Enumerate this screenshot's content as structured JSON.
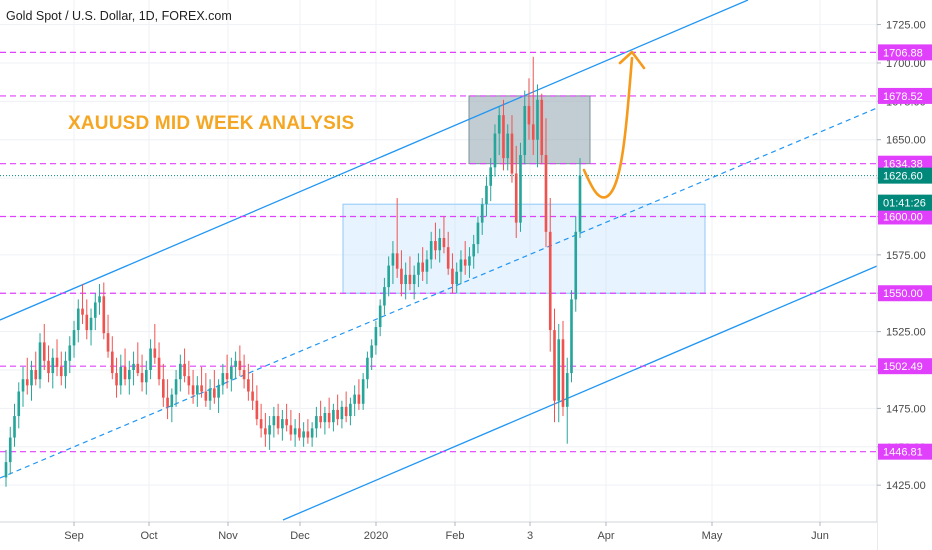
{
  "header": {
    "symbol": "Gold Spot / U.S. Dollar, 1D, FOREX.com"
  },
  "annotation": {
    "title": "XAUUSD MID WEEK ANALYSIS",
    "color": "#f5a623"
  },
  "chart_data": {
    "type": "candlestick",
    "ylim": [
      1401,
      1741
    ],
    "y_ticks": [
      1425,
      1450,
      1475,
      1500,
      1525,
      1550,
      1575,
      1600,
      1625,
      1650,
      1675,
      1700,
      1725
    ],
    "y_tick_labels": [
      "1425.00",
      "1450.00",
      "1475.00",
      "1500.00",
      "1525.00",
      "1550.00",
      "1575.00",
      "1600.00",
      "1625.00",
      "1650.00",
      "1675.00",
      "1700.00",
      "1725.00"
    ],
    "x_tick_labels": [
      "Sep",
      "Oct",
      "Nov",
      "Dec",
      "2020",
      "Feb",
      "3",
      "Apr",
      "May",
      "Jun"
    ],
    "grid": true,
    "colors": {
      "up": "#26a69a",
      "down": "#ef5350",
      "level": "#e040fb",
      "channel": "#2196f3",
      "price": "#00897b",
      "arrow": "#f59a1a"
    },
    "levels": [
      1706.88,
      1678.52,
      1634.38,
      1600.0,
      1550.0,
      1502.49,
      1446.81
    ],
    "level_labels": [
      "1706.88",
      "1678.52",
      "1634.38",
      "1600.00",
      "1550.00",
      "1502.49",
      "1446.81"
    ],
    "current_price": {
      "value": 1626.6,
      "label": "1626.60",
      "countdown": "01:41:26"
    },
    "zones": [
      {
        "name": "resistance-zone",
        "low": 1634.38,
        "high": 1678.52,
        "color": "#90a4ae"
      },
      {
        "name": "support-zone",
        "low": 1550.0,
        "high": 1608.0,
        "color": "#bbdefb"
      }
    ],
    "candles": [
      {
        "o": 1430,
        "h": 1448,
        "l": 1424,
        "c": 1440
      },
      {
        "o": 1440,
        "h": 1463,
        "l": 1432,
        "c": 1456
      },
      {
        "o": 1456,
        "h": 1478,
        "l": 1450,
        "c": 1470
      },
      {
        "o": 1470,
        "h": 1492,
        "l": 1462,
        "c": 1486
      },
      {
        "o": 1486,
        "h": 1502,
        "l": 1476,
        "c": 1494
      },
      {
        "o": 1494,
        "h": 1508,
        "l": 1484,
        "c": 1490
      },
      {
        "o": 1490,
        "h": 1506,
        "l": 1480,
        "c": 1500
      },
      {
        "o": 1500,
        "h": 1512,
        "l": 1490,
        "c": 1494
      },
      {
        "o": 1494,
        "h": 1524,
        "l": 1488,
        "c": 1518
      },
      {
        "o": 1518,
        "h": 1530,
        "l": 1500,
        "c": 1506
      },
      {
        "o": 1506,
        "h": 1516,
        "l": 1492,
        "c": 1498
      },
      {
        "o": 1498,
        "h": 1514,
        "l": 1488,
        "c": 1508
      },
      {
        "o": 1508,
        "h": 1520,
        "l": 1496,
        "c": 1502
      },
      {
        "o": 1502,
        "h": 1512,
        "l": 1490,
        "c": 1496
      },
      {
        "o": 1496,
        "h": 1512,
        "l": 1488,
        "c": 1506
      },
      {
        "o": 1506,
        "h": 1522,
        "l": 1498,
        "c": 1516
      },
      {
        "o": 1516,
        "h": 1532,
        "l": 1508,
        "c": 1526
      },
      {
        "o": 1526,
        "h": 1546,
        "l": 1518,
        "c": 1540
      },
      {
        "o": 1540,
        "h": 1556,
        "l": 1530,
        "c": 1536
      },
      {
        "o": 1536,
        "h": 1546,
        "l": 1520,
        "c": 1526
      },
      {
        "o": 1526,
        "h": 1540,
        "l": 1516,
        "c": 1534
      },
      {
        "o": 1534,
        "h": 1550,
        "l": 1526,
        "c": 1544
      },
      {
        "o": 1544,
        "h": 1556,
        "l": 1536,
        "c": 1548
      },
      {
        "o": 1548,
        "h": 1557,
        "l": 1520,
        "c": 1524
      },
      {
        "o": 1524,
        "h": 1536,
        "l": 1508,
        "c": 1512
      },
      {
        "o": 1512,
        "h": 1522,
        "l": 1494,
        "c": 1498
      },
      {
        "o": 1498,
        "h": 1508,
        "l": 1482,
        "c": 1490
      },
      {
        "o": 1490,
        "h": 1510,
        "l": 1484,
        "c": 1502
      },
      {
        "o": 1502,
        "h": 1514,
        "l": 1490,
        "c": 1494
      },
      {
        "o": 1494,
        "h": 1506,
        "l": 1484,
        "c": 1500
      },
      {
        "o": 1500,
        "h": 1512,
        "l": 1490,
        "c": 1504
      },
      {
        "o": 1504,
        "h": 1518,
        "l": 1496,
        "c": 1498
      },
      {
        "o": 1498,
        "h": 1510,
        "l": 1486,
        "c": 1492
      },
      {
        "o": 1492,
        "h": 1506,
        "l": 1484,
        "c": 1500
      },
      {
        "o": 1500,
        "h": 1520,
        "l": 1494,
        "c": 1514
      },
      {
        "o": 1514,
        "h": 1530,
        "l": 1504,
        "c": 1508
      },
      {
        "o": 1508,
        "h": 1518,
        "l": 1490,
        "c": 1494
      },
      {
        "o": 1494,
        "h": 1504,
        "l": 1476,
        "c": 1482
      },
      {
        "o": 1482,
        "h": 1494,
        "l": 1468,
        "c": 1476
      },
      {
        "o": 1476,
        "h": 1488,
        "l": 1466,
        "c": 1484
      },
      {
        "o": 1484,
        "h": 1500,
        "l": 1476,
        "c": 1494
      },
      {
        "o": 1494,
        "h": 1510,
        "l": 1486,
        "c": 1504
      },
      {
        "o": 1504,
        "h": 1514,
        "l": 1492,
        "c": 1496
      },
      {
        "o": 1496,
        "h": 1506,
        "l": 1484,
        "c": 1490
      },
      {
        "o": 1490,
        "h": 1500,
        "l": 1478,
        "c": 1484
      },
      {
        "o": 1484,
        "h": 1496,
        "l": 1476,
        "c": 1490
      },
      {
        "o": 1490,
        "h": 1502,
        "l": 1482,
        "c": 1486
      },
      {
        "o": 1486,
        "h": 1498,
        "l": 1476,
        "c": 1480
      },
      {
        "o": 1480,
        "h": 1494,
        "l": 1474,
        "c": 1488
      },
      {
        "o": 1488,
        "h": 1500,
        "l": 1478,
        "c": 1482
      },
      {
        "o": 1482,
        "h": 1494,
        "l": 1472,
        "c": 1490
      },
      {
        "o": 1490,
        "h": 1504,
        "l": 1484,
        "c": 1498
      },
      {
        "o": 1498,
        "h": 1510,
        "l": 1488,
        "c": 1494
      },
      {
        "o": 1494,
        "h": 1508,
        "l": 1486,
        "c": 1502
      },
      {
        "o": 1502,
        "h": 1512,
        "l": 1494,
        "c": 1506
      },
      {
        "o": 1506,
        "h": 1516,
        "l": 1496,
        "c": 1500
      },
      {
        "o": 1500,
        "h": 1510,
        "l": 1488,
        "c": 1494
      },
      {
        "o": 1494,
        "h": 1504,
        "l": 1480,
        "c": 1486
      },
      {
        "o": 1486,
        "h": 1498,
        "l": 1474,
        "c": 1480
      },
      {
        "o": 1480,
        "h": 1490,
        "l": 1464,
        "c": 1468
      },
      {
        "o": 1468,
        "h": 1478,
        "l": 1456,
        "c": 1462
      },
      {
        "o": 1462,
        "h": 1472,
        "l": 1450,
        "c": 1458
      },
      {
        "o": 1458,
        "h": 1470,
        "l": 1448,
        "c": 1464
      },
      {
        "o": 1464,
        "h": 1476,
        "l": 1456,
        "c": 1470
      },
      {
        "o": 1470,
        "h": 1478,
        "l": 1458,
        "c": 1462
      },
      {
        "o": 1462,
        "h": 1474,
        "l": 1454,
        "c": 1468
      },
      {
        "o": 1468,
        "h": 1478,
        "l": 1460,
        "c": 1464
      },
      {
        "o": 1464,
        "h": 1474,
        "l": 1454,
        "c": 1458
      },
      {
        "o": 1458,
        "h": 1468,
        "l": 1450,
        "c": 1462
      },
      {
        "o": 1462,
        "h": 1472,
        "l": 1454,
        "c": 1456
      },
      {
        "o": 1456,
        "h": 1466,
        "l": 1450,
        "c": 1460
      },
      {
        "o": 1460,
        "h": 1468,
        "l": 1452,
        "c": 1456
      },
      {
        "o": 1456,
        "h": 1466,
        "l": 1450,
        "c": 1462
      },
      {
        "o": 1462,
        "h": 1476,
        "l": 1456,
        "c": 1470
      },
      {
        "o": 1470,
        "h": 1480,
        "l": 1462,
        "c": 1466
      },
      {
        "o": 1466,
        "h": 1476,
        "l": 1458,
        "c": 1472
      },
      {
        "o": 1472,
        "h": 1482,
        "l": 1462,
        "c": 1466
      },
      {
        "o": 1466,
        "h": 1478,
        "l": 1460,
        "c": 1474
      },
      {
        "o": 1474,
        "h": 1484,
        "l": 1464,
        "c": 1468
      },
      {
        "o": 1468,
        "h": 1480,
        "l": 1462,
        "c": 1476
      },
      {
        "o": 1476,
        "h": 1486,
        "l": 1466,
        "c": 1470
      },
      {
        "o": 1470,
        "h": 1482,
        "l": 1464,
        "c": 1478
      },
      {
        "o": 1478,
        "h": 1490,
        "l": 1470,
        "c": 1484
      },
      {
        "o": 1484,
        "h": 1494,
        "l": 1474,
        "c": 1478
      },
      {
        "o": 1478,
        "h": 1498,
        "l": 1474,
        "c": 1494
      },
      {
        "o": 1494,
        "h": 1512,
        "l": 1488,
        "c": 1508
      },
      {
        "o": 1508,
        "h": 1520,
        "l": 1500,
        "c": 1516
      },
      {
        "o": 1516,
        "h": 1532,
        "l": 1510,
        "c": 1528
      },
      {
        "o": 1528,
        "h": 1546,
        "l": 1522,
        "c": 1542
      },
      {
        "o": 1542,
        "h": 1560,
        "l": 1536,
        "c": 1554
      },
      {
        "o": 1554,
        "h": 1574,
        "l": 1548,
        "c": 1568
      },
      {
        "o": 1568,
        "h": 1584,
        "l": 1556,
        "c": 1576
      },
      {
        "o": 1576,
        "h": 1612,
        "l": 1560,
        "c": 1566
      },
      {
        "o": 1566,
        "h": 1578,
        "l": 1548,
        "c": 1556
      },
      {
        "o": 1556,
        "h": 1570,
        "l": 1546,
        "c": 1562
      },
      {
        "o": 1562,
        "h": 1574,
        "l": 1552,
        "c": 1556
      },
      {
        "o": 1556,
        "h": 1568,
        "l": 1546,
        "c": 1562
      },
      {
        "o": 1562,
        "h": 1576,
        "l": 1554,
        "c": 1570
      },
      {
        "o": 1570,
        "h": 1580,
        "l": 1558,
        "c": 1564
      },
      {
        "o": 1564,
        "h": 1578,
        "l": 1556,
        "c": 1572
      },
      {
        "o": 1572,
        "h": 1590,
        "l": 1566,
        "c": 1584
      },
      {
        "o": 1584,
        "h": 1596,
        "l": 1572,
        "c": 1578
      },
      {
        "o": 1578,
        "h": 1592,
        "l": 1570,
        "c": 1586
      },
      {
        "o": 1586,
        "h": 1600,
        "l": 1576,
        "c": 1580
      },
      {
        "o": 1580,
        "h": 1590,
        "l": 1562,
        "c": 1566
      },
      {
        "o": 1566,
        "h": 1576,
        "l": 1550,
        "c": 1556
      },
      {
        "o": 1556,
        "h": 1570,
        "l": 1550,
        "c": 1564
      },
      {
        "o": 1564,
        "h": 1578,
        "l": 1556,
        "c": 1572
      },
      {
        "o": 1572,
        "h": 1584,
        "l": 1562,
        "c": 1568
      },
      {
        "o": 1568,
        "h": 1580,
        "l": 1560,
        "c": 1574
      },
      {
        "o": 1574,
        "h": 1588,
        "l": 1566,
        "c": 1582
      },
      {
        "o": 1582,
        "h": 1600,
        "l": 1576,
        "c": 1596
      },
      {
        "o": 1596,
        "h": 1612,
        "l": 1588,
        "c": 1608
      },
      {
        "o": 1608,
        "h": 1626,
        "l": 1600,
        "c": 1620
      },
      {
        "o": 1620,
        "h": 1638,
        "l": 1610,
        "c": 1632
      },
      {
        "o": 1632,
        "h": 1660,
        "l": 1626,
        "c": 1654
      },
      {
        "o": 1654,
        "h": 1672,
        "l": 1640,
        "c": 1666
      },
      {
        "o": 1666,
        "h": 1676,
        "l": 1630,
        "c": 1638
      },
      {
        "o": 1638,
        "h": 1660,
        "l": 1630,
        "c": 1654
      },
      {
        "o": 1654,
        "h": 1666,
        "l": 1622,
        "c": 1628
      },
      {
        "o": 1628,
        "h": 1646,
        "l": 1586,
        "c": 1596
      },
      {
        "o": 1596,
        "h": 1648,
        "l": 1590,
        "c": 1640
      },
      {
        "o": 1640,
        "h": 1682,
        "l": 1634,
        "c": 1672
      },
      {
        "o": 1672,
        "h": 1690,
        "l": 1650,
        "c": 1660
      },
      {
        "o": 1660,
        "h": 1704,
        "l": 1640,
        "c": 1650
      },
      {
        "o": 1650,
        "h": 1686,
        "l": 1632,
        "c": 1676
      },
      {
        "o": 1676,
        "h": 1680,
        "l": 1634,
        "c": 1640
      },
      {
        "o": 1640,
        "h": 1664,
        "l": 1580,
        "c": 1590
      },
      {
        "o": 1590,
        "h": 1612,
        "l": 1512,
        "c": 1526
      },
      {
        "o": 1526,
        "h": 1540,
        "l": 1466,
        "c": 1480
      },
      {
        "o": 1480,
        "h": 1530,
        "l": 1466,
        "c": 1520
      },
      {
        "o": 1520,
        "h": 1532,
        "l": 1470,
        "c": 1476
      },
      {
        "o": 1476,
        "h": 1508,
        "l": 1452,
        "c": 1498
      },
      {
        "o": 1498,
        "h": 1552,
        "l": 1492,
        "c": 1546
      },
      {
        "o": 1546,
        "h": 1600,
        "l": 1538,
        "c": 1590
      },
      {
        "o": 1590,
        "h": 1638,
        "l": 1586,
        "c": 1626.6
      }
    ]
  }
}
